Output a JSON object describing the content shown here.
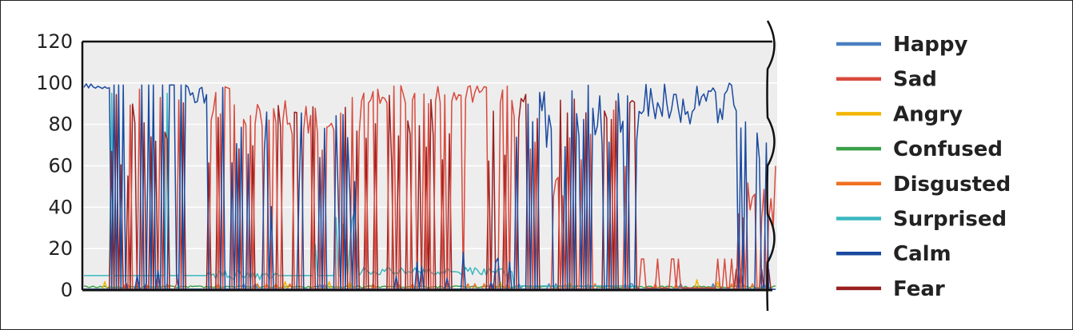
{
  "chart_data": {
    "type": "line",
    "title": "",
    "xlabel": "",
    "ylabel": "",
    "ylim": [
      0,
      120
    ],
    "yticks": [
      "0",
      "20",
      "40",
      "60",
      "80",
      "100",
      "120"
    ],
    "grid": true,
    "legend_position": "right",
    "x_axis_labels_visible": false,
    "truncated_right": true,
    "n_points": 300,
    "colors": {
      "Happy": "#4a7fc1",
      "Sad": "#d94a3d",
      "Angry": "#f2b500",
      "Confused": "#3aa04a",
      "Disgusted": "#f07020",
      "Surprised": "#3ab8c0",
      "Calm": "#1a4aa0",
      "Fear": "#9a2020"
    },
    "legend": [
      "Happy",
      "Sad",
      "Angry",
      "Confused",
      "Disgusted",
      "Surprised",
      "Calm",
      "Fear"
    ],
    "series": []
  }
}
